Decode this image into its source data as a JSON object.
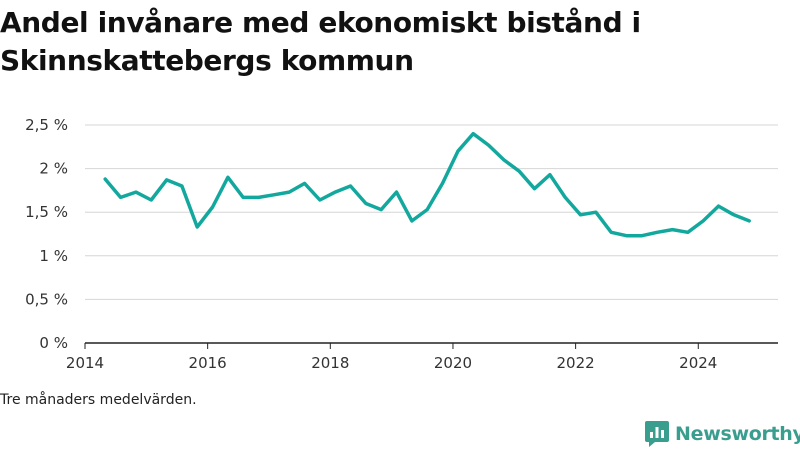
{
  "chart_data": {
    "type": "line",
    "title": "Andel invånare med ekonomiskt bistånd i Skinnskattebergs kommun",
    "note": "Tre månaders medelvärden.",
    "ylim": [
      0,
      2.5
    ],
    "xlim": [
      2014,
      2025.3
    ],
    "y_ticks": [
      0,
      0.5,
      1,
      1.5,
      2,
      2.5
    ],
    "y_tick_labels": [
      "0 %",
      "0,5 %",
      "1 %",
      "1,5 %",
      "2 %",
      "2,5 %"
    ],
    "x_ticks": [
      2014,
      2016,
      2018,
      2020,
      2022,
      2024
    ],
    "x_tick_labels": [
      "2014",
      "2016",
      "2018",
      "2020",
      "2022",
      "2024"
    ],
    "grid": "horizontal",
    "color": "#13a89e",
    "x": [
      2014.33,
      2014.58,
      2014.83,
      2015.08,
      2015.33,
      2015.58,
      2015.83,
      2016.08,
      2016.33,
      2016.58,
      2016.83,
      2017.08,
      2017.33,
      2017.58,
      2017.83,
      2018.08,
      2018.33,
      2018.58,
      2018.83,
      2019.08,
      2019.33,
      2019.58,
      2019.83,
      2020.08,
      2020.33,
      2020.58,
      2020.83,
      2021.08,
      2021.33,
      2021.58,
      2021.83,
      2022.08,
      2022.33,
      2022.58,
      2022.83,
      2023.08,
      2023.33,
      2023.58,
      2023.83,
      2024.08,
      2024.33,
      2024.58,
      2024.83
    ],
    "values": [
      1.88,
      1.67,
      1.73,
      1.64,
      1.87,
      1.8,
      1.33,
      1.56,
      1.9,
      1.67,
      1.67,
      1.7,
      1.73,
      1.83,
      1.64,
      1.73,
      1.8,
      1.6,
      1.53,
      1.73,
      1.4,
      1.53,
      1.83,
      2.2,
      2.4,
      2.27,
      2.1,
      1.97,
      1.77,
      1.93,
      1.67,
      1.47,
      1.5,
      1.27,
      1.23,
      1.23,
      1.27,
      1.3,
      1.27,
      1.4,
      1.57,
      1.47,
      1.4
    ]
  },
  "brand": {
    "name": "Newsworthy",
    "icon": "newsworthy-logo-icon",
    "color": "#3a9e8f"
  }
}
